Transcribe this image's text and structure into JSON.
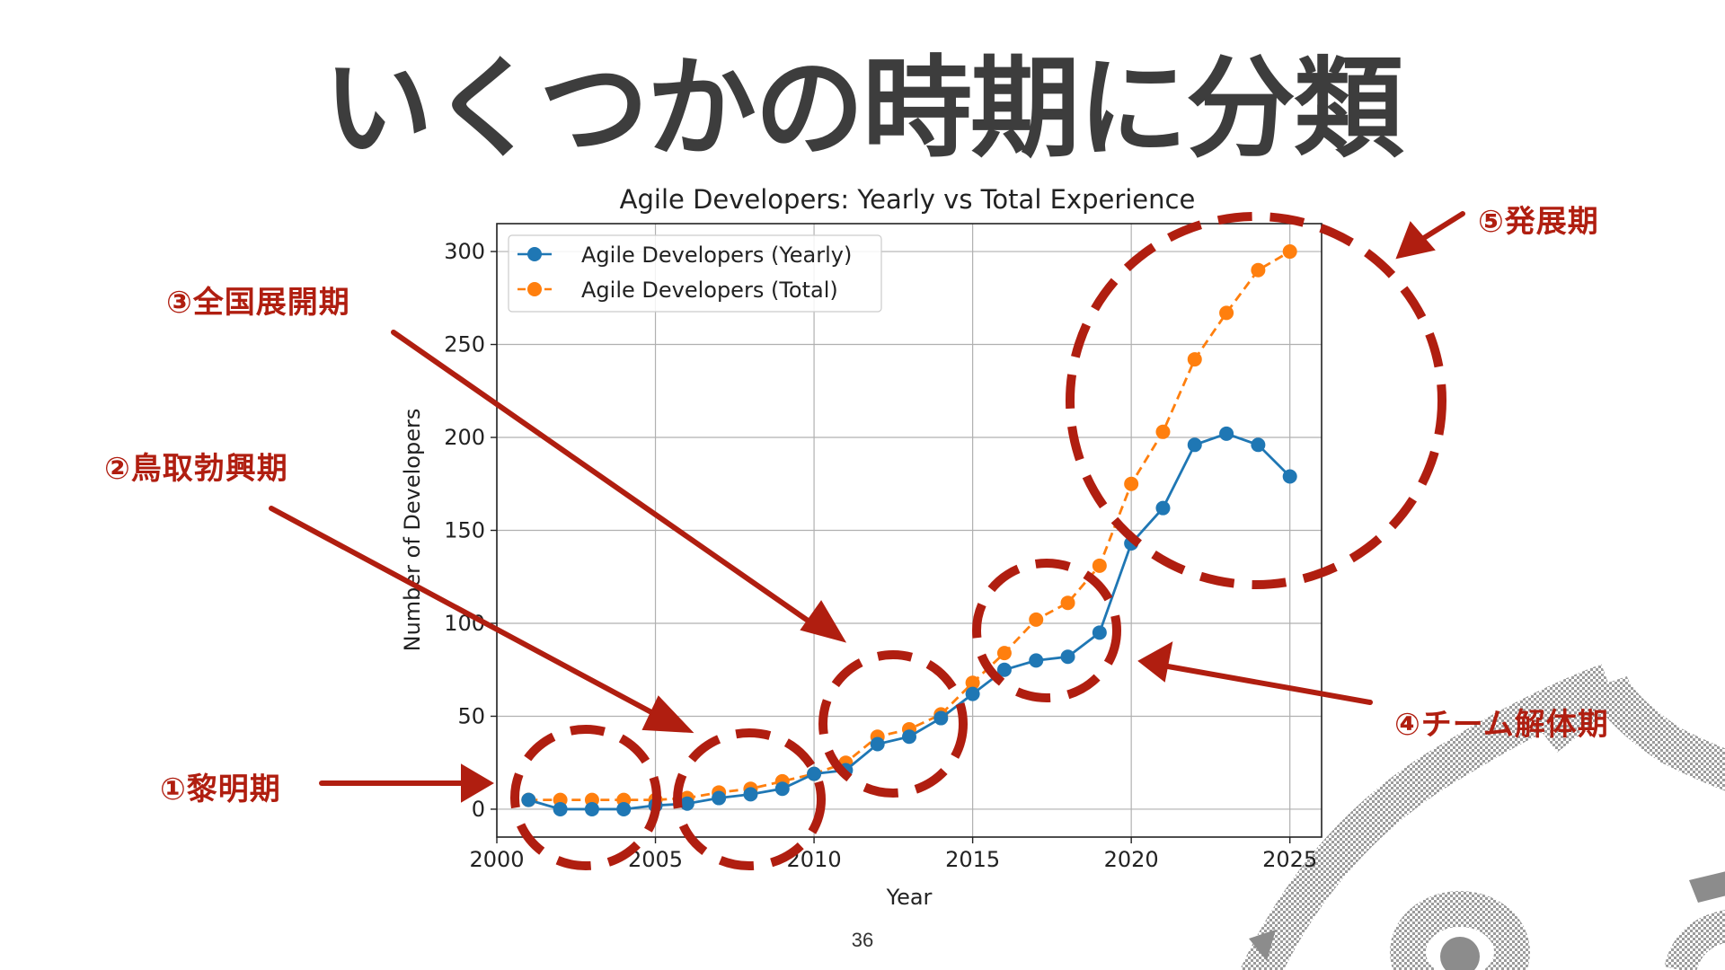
{
  "slide": {
    "title": "いくつかの時期に分類",
    "page_number": "36"
  },
  "annotations": [
    {
      "id": "p1",
      "label": "①黎明期"
    },
    {
      "id": "p2",
      "label": "②鳥取勃興期"
    },
    {
      "id": "p3",
      "label": "③全国展開期"
    },
    {
      "id": "p4",
      "label": "④チーム解体期"
    },
    {
      "id": "p5",
      "label": "⑤発展期"
    }
  ],
  "colors": {
    "annotation": "#b01e10",
    "yearly": "#1f77b4",
    "total": "#ff7f0e",
    "title": "#3d3d3d"
  },
  "chart_data": {
    "type": "line",
    "title": "Agile Developers: Yearly vs Total Experience",
    "xlabel": "Year",
    "ylabel": "Number of Developers",
    "xlim": [
      2000,
      2026
    ],
    "ylim": [
      -15,
      315
    ],
    "xticks": [
      2000,
      2005,
      2010,
      2015,
      2020,
      2025
    ],
    "yticks": [
      0,
      50,
      100,
      150,
      200,
      250,
      300
    ],
    "grid": true,
    "legend_position": "top-left",
    "x": [
      2001,
      2002,
      2003,
      2004,
      2005,
      2006,
      2007,
      2008,
      2009,
      2010,
      2011,
      2012,
      2013,
      2014,
      2015,
      2016,
      2017,
      2018,
      2019,
      2020,
      2021,
      2022,
      2023,
      2024,
      2025
    ],
    "series": [
      {
        "name": "Agile Developers (Yearly)",
        "style": "solid",
        "values": [
          5,
          0,
          0,
          0,
          2,
          3,
          6,
          8,
          11,
          19,
          21,
          35,
          39,
          49,
          62,
          75,
          80,
          82,
          95,
          143,
          162,
          196,
          202,
          196,
          179
        ]
      },
      {
        "name": "Agile Developers (Total)",
        "style": "dashed",
        "values": [
          5,
          5,
          5,
          5,
          5,
          6,
          9,
          11,
          15,
          19,
          25,
          39,
          43,
          51,
          68,
          84,
          102,
          111,
          131,
          175,
          203,
          242,
          267,
          290,
          300
        ]
      }
    ]
  }
}
